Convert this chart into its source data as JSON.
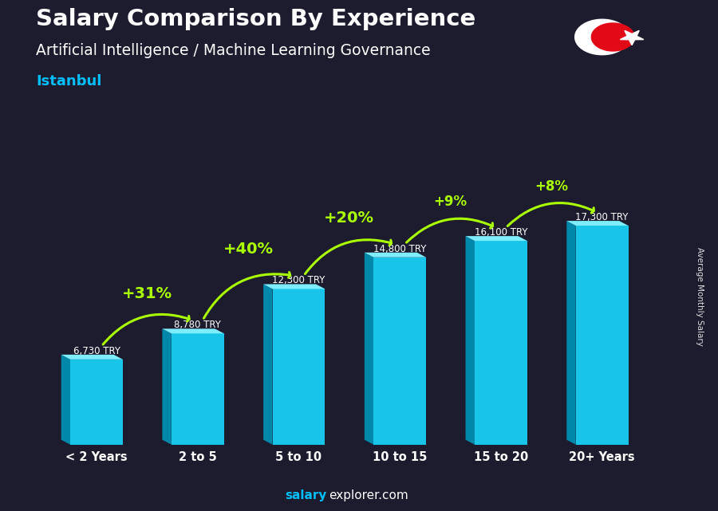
{
  "title_line1": "Salary Comparison By Experience",
  "title_line2": "Artificial Intelligence / Machine Learning Governance",
  "subtitle": "Istanbul",
  "categories": [
    "< 2 Years",
    "2 to 5",
    "5 to 10",
    "10 to 15",
    "15 to 20",
    "20+ Years"
  ],
  "values": [
    6730,
    8780,
    12300,
    14800,
    16100,
    17300
  ],
  "salary_labels": [
    "6,730 TRY",
    "8,780 TRY",
    "12,300 TRY",
    "14,800 TRY",
    "16,100 TRY",
    "17,300 TRY"
  ],
  "pct_labels": [
    "+31%",
    "+40%",
    "+20%",
    "+9%",
    "+8%"
  ],
  "arc_data": [
    [
      0,
      1,
      "+31%"
    ],
    [
      1,
      2,
      "+40%"
    ],
    [
      2,
      3,
      "+20%"
    ],
    [
      3,
      4,
      "+9%"
    ],
    [
      4,
      5,
      "+8%"
    ]
  ],
  "bar_color_face": "#18C5E8",
  "bar_color_left": "#0088AA",
  "bar_color_top": "#7EEEFF",
  "bg_color": "#1C1C2E",
  "text_white": "#FFFFFF",
  "text_green": "#AAFF00",
  "text_cyan": "#00BFFF",
  "ylabel_text": "Average Monthly Salary",
  "footer_bold": "salary",
  "footer_normal": "explorer.com",
  "ylim": [
    0,
    21000
  ],
  "flag_red": "#E30A17"
}
